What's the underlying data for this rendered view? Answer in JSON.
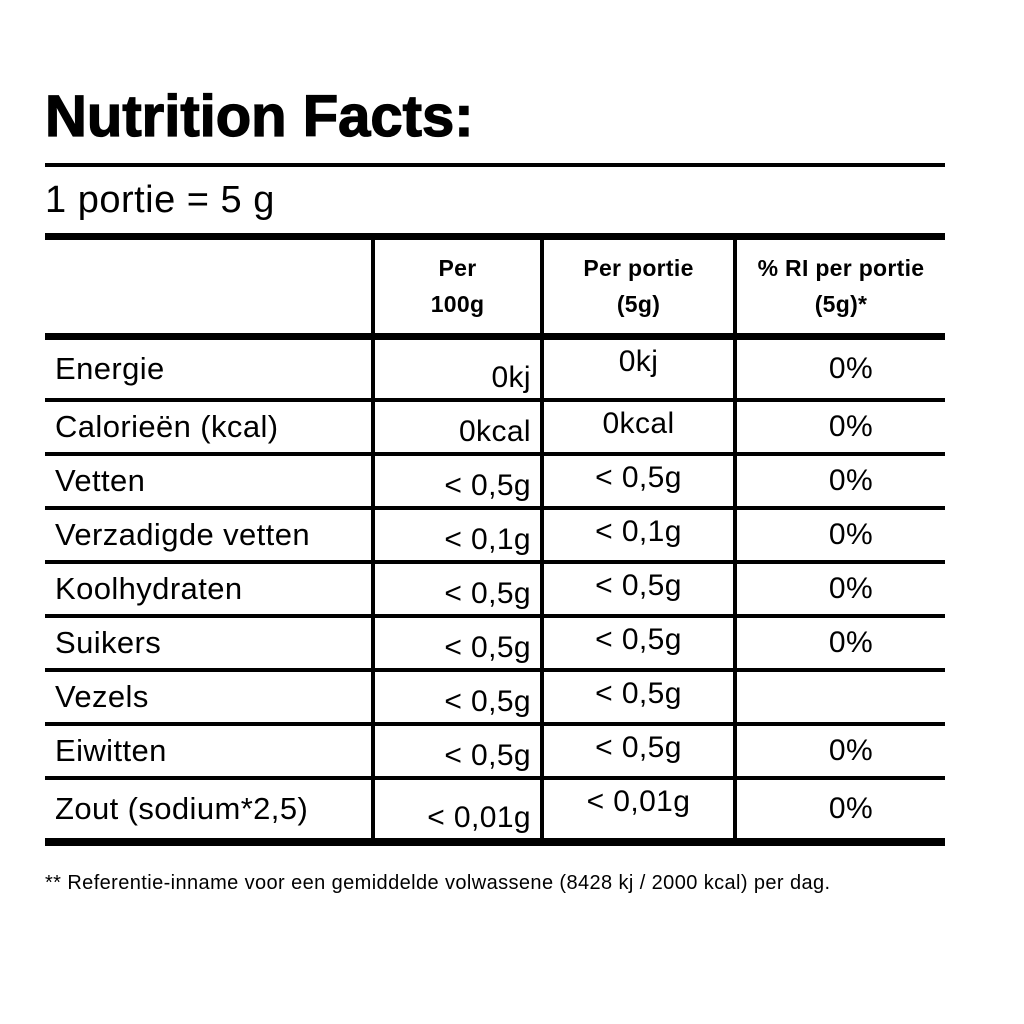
{
  "title": "Nutrition Facts:",
  "serving_note": "1 portie = 5 g",
  "table": {
    "headers": [
      "Per\n100g",
      "Per portie\n(5g)",
      "% RI per portie\n(5g)*"
    ],
    "rows": [
      {
        "label": "Energie",
        "per100": "0kj",
        "portie": "0kj",
        "ri": "0%"
      },
      {
        "label": "Calorieën (kcal)",
        "per100": "0kcal",
        "portie": "0kcal",
        "ri": "0%"
      },
      {
        "label": "Vetten",
        "per100": "< 0,5g",
        "portie": "< 0,5g",
        "ri": "0%"
      },
      {
        "label": "Verzadigde vetten",
        "per100": "< 0,1g",
        "portie": "< 0,1g",
        "ri": "0%"
      },
      {
        "label": "Koolhydraten",
        "per100": "< 0,5g",
        "portie": "< 0,5g",
        "ri": "0%"
      },
      {
        "label": "Suikers",
        "per100": "< 0,5g",
        "portie": "< 0,5g",
        "ri": "0%"
      },
      {
        "label": "Vezels",
        "per100": "< 0,5g",
        "portie": "< 0,5g",
        "ri": ""
      },
      {
        "label": "Eiwitten",
        "per100": "< 0,5g",
        "portie": "< 0,5g",
        "ri": "0%"
      },
      {
        "label": "Zout (sodium*2,5)",
        "per100": "< 0,01g",
        "portie": "< 0,01g",
        "ri": "0%"
      }
    ]
  },
  "footnote": "** Referentie-inname voor een gemiddelde volwassene (8428 kj / 2000 kcal) per dag.",
  "colors": {
    "text": "#000000",
    "background": "#ffffff",
    "line": "#000000"
  }
}
